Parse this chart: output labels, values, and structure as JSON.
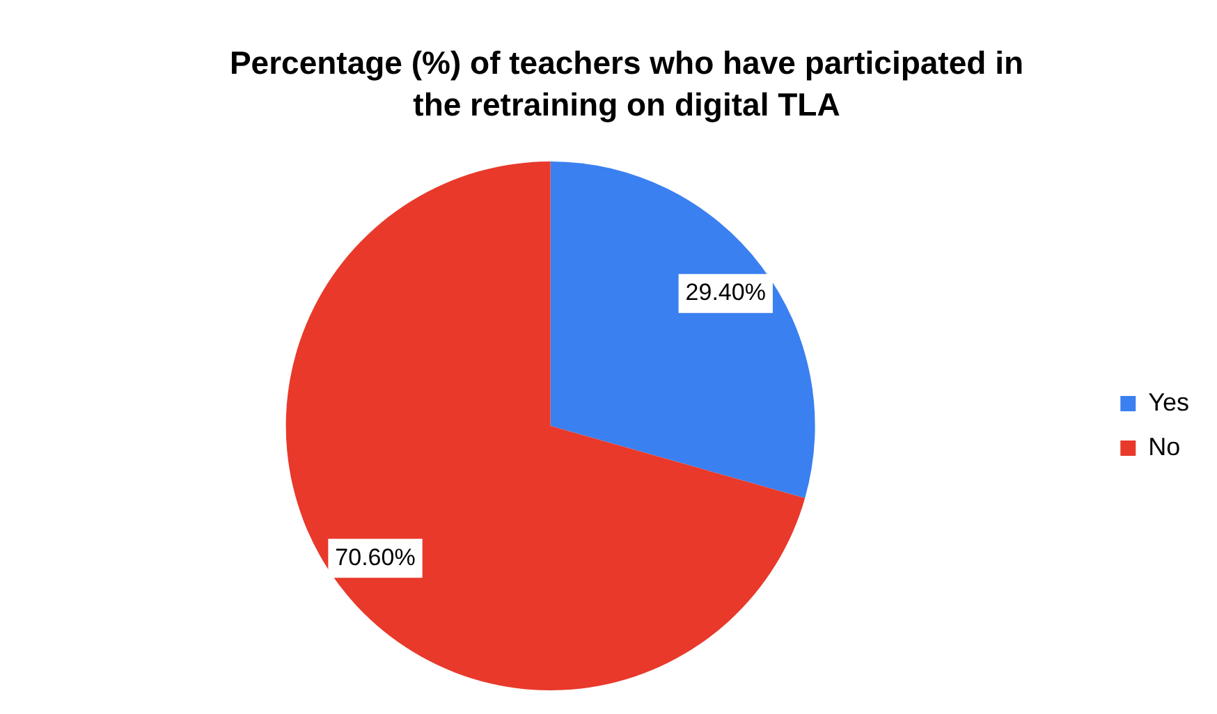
{
  "chart_data": {
    "type": "pie",
    "title": "Percentage (%) of teachers who have participated in the retraining on digital TLA",
    "categories": [
      "Yes",
      "No"
    ],
    "values": [
      29.4,
      70.6
    ],
    "colors": [
      "#3a80f0",
      "#e8392b"
    ],
    "value_labels": [
      "29.40%",
      "70.60%"
    ],
    "legend": "right"
  }
}
